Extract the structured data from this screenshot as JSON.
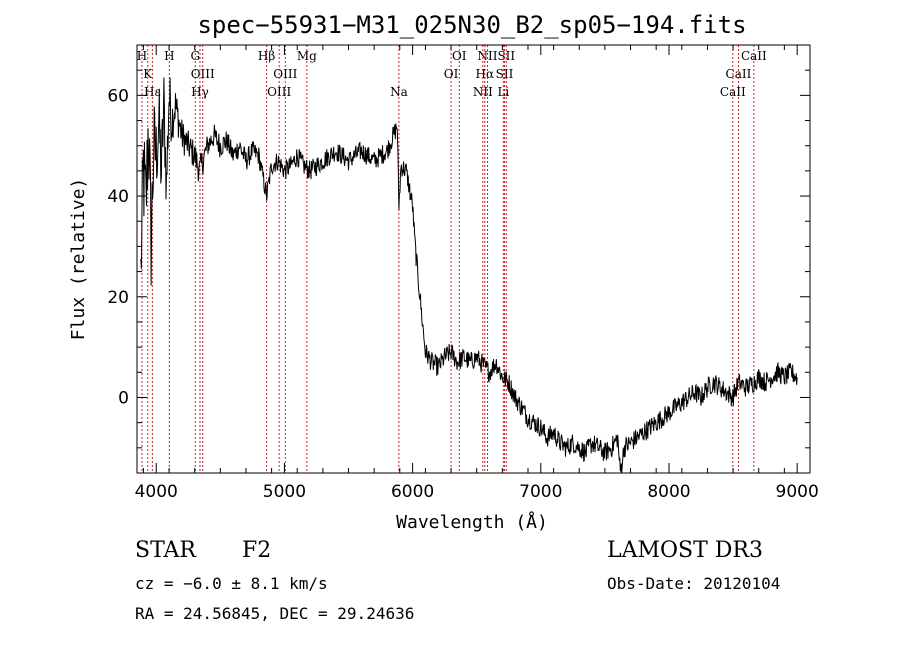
{
  "chart_data": {
    "type": "line",
    "title": "spec−55931−M31_025N30_B2_sp05−194.fits",
    "xlabel": "Wavelength (Å)",
    "ylabel": "Flux (relative)",
    "xlim": [
      3850,
      9100
    ],
    "ylim": [
      -15,
      70
    ],
    "xticks": [
      4000,
      5000,
      6000,
      7000,
      8000,
      9000
    ],
    "yticks": [
      0,
      20,
      40,
      60
    ],
    "line_color": "#000000",
    "marker_color": "#cc2222",
    "series": [
      {
        "name": "flux",
        "x": [
          3880,
          3900,
          3920,
          3940,
          3960,
          3980,
          4000,
          4020,
          4040,
          4060,
          4080,
          4100,
          4120,
          4150,
          4200,
          4250,
          4300,
          4340,
          4400,
          4450,
          4500,
          4550,
          4600,
          4650,
          4700,
          4750,
          4800,
          4861,
          4900,
          4950,
          5000,
          5050,
          5100,
          5150,
          5200,
          5250,
          5300,
          5350,
          5400,
          5450,
          5500,
          5550,
          5600,
          5650,
          5700,
          5750,
          5800,
          5850,
          5880,
          5893,
          5910,
          5950,
          6000,
          6020,
          6050,
          6080,
          6100,
          6150,
          6200,
          6250,
          6300,
          6350,
          6400,
          6450,
          6500,
          6563,
          6600,
          6650,
          6700,
          6750,
          6800,
          6850,
          6900,
          6950,
          7000,
          7050,
          7100,
          7150,
          7200,
          7250,
          7300,
          7350,
          7400,
          7450,
          7500,
          7550,
          7600,
          7620,
          7650,
          7700,
          7750,
          7800,
          7850,
          7900,
          7950,
          8000,
          8050,
          8100,
          8150,
          8200,
          8250,
          8300,
          8350,
          8400,
          8450,
          8498,
          8542,
          8600,
          8662,
          8700,
          8750,
          8800,
          8850,
          8900,
          8950,
          9000
        ],
        "y": [
          25,
          45,
          38,
          55,
          30,
          50,
          48,
          55,
          45,
          58,
          42,
          60,
          55,
          58,
          52,
          50,
          48,
          45,
          50,
          52,
          50,
          51,
          48,
          50,
          47,
          49,
          48,
          40,
          46,
          47,
          45,
          46,
          48,
          46,
          45,
          46,
          47,
          48,
          49,
          48,
          47,
          48,
          49,
          48,
          47,
          48,
          49,
          52,
          54,
          38,
          46,
          45,
          38,
          30,
          22,
          14,
          9,
          7,
          6,
          8,
          9,
          7,
          8,
          7,
          8,
          6,
          5,
          7,
          4,
          3,
          0,
          -2,
          -4,
          -5,
          -6,
          -8,
          -7,
          -9,
          -10,
          -9,
          -10,
          -11,
          -9,
          -10,
          -11,
          -10,
          -8,
          -15,
          -10,
          -9,
          -8,
          -7,
          -6,
          -5,
          -4,
          -3,
          -2,
          -1,
          0,
          1,
          0,
          2,
          3,
          2,
          1,
          0,
          3,
          2,
          3,
          4,
          3,
          4,
          5,
          4,
          5,
          4
        ],
        "noise": [
          8,
          12,
          10,
          12,
          10,
          10,
          9,
          9,
          8,
          8,
          7,
          7,
          5,
          4,
          3.5,
          3,
          3,
          3,
          2.5,
          2.5,
          2.5,
          2.2,
          2.2,
          2.2,
          2.2,
          2,
          2,
          2,
          2,
          2,
          2,
          2,
          2,
          2,
          2,
          2,
          2,
          2,
          2,
          2,
          2,
          2,
          2,
          2,
          2,
          2,
          2,
          2,
          2,
          2,
          2,
          2,
          2,
          2,
          2,
          2,
          2,
          2,
          2,
          2,
          2,
          2,
          2,
          2,
          2,
          2,
          2,
          2,
          2,
          2,
          2,
          2,
          2,
          2,
          2,
          2,
          2,
          2,
          2,
          2,
          2,
          2,
          2,
          2,
          2,
          2,
          2,
          2,
          2,
          2,
          2,
          2,
          2,
          2,
          2,
          2,
          2,
          2,
          2,
          2,
          2,
          2,
          2,
          2,
          2,
          2,
          2,
          2,
          2,
          2,
          2,
          2,
          2,
          2,
          2,
          2
        ]
      }
    ],
    "line_markers": [
      {
        "label": "H",
        "x": 3889,
        "row": 0
      },
      {
        "label": "K",
        "x": 3934,
        "row": 1
      },
      {
        "label": "Hε",
        "x": 3970,
        "row": 2
      },
      {
        "label": "H",
        "x": 4102,
        "row": 0
      },
      {
        "label": "G",
        "x": 4305,
        "row": 0
      },
      {
        "label": "OIII",
        "x": 4363,
        "row": 1
      },
      {
        "label": "Hγ",
        "x": 4341,
        "row": 2
      },
      {
        "label": "Hβ",
        "x": 4861,
        "row": 0
      },
      {
        "label": "OIII",
        "x": 5007,
        "row": 1
      },
      {
        "label": "OIII",
        "x": 4959,
        "row": 2
      },
      {
        "label": "Mg",
        "x": 5175,
        "row": 0
      },
      {
        "label": "Na",
        "x": 5893,
        "row": 2
      },
      {
        "label": "OI",
        "x": 6364,
        "row": 0
      },
      {
        "label": "OI",
        "x": 6300,
        "row": 1
      },
      {
        "label": "NII",
        "x": 6584,
        "row": 0
      },
      {
        "label": "Hα",
        "x": 6563,
        "row": 1
      },
      {
        "label": "NII",
        "x": 6548,
        "row": 2
      },
      {
        "label": "SII",
        "x": 6731,
        "row": 0
      },
      {
        "label": "SII",
        "x": 6717,
        "row": 1
      },
      {
        "label": "Li",
        "x": 6708,
        "row": 2
      },
      {
        "label": "CaII",
        "x": 8662,
        "row": 0
      },
      {
        "label": "CaII",
        "x": 8542,
        "row": 1
      },
      {
        "label": "CaII",
        "x": 8498,
        "row": 2
      }
    ]
  },
  "info": {
    "class_label": "STAR",
    "subclass": "F2",
    "survey": "LAMOST DR3",
    "cz": "cz = −6.0 ± 8.1 km/s",
    "obs_date": "Obs-Date: 20120104",
    "coords": "RA =  24.56845, DEC =  29.24636"
  }
}
